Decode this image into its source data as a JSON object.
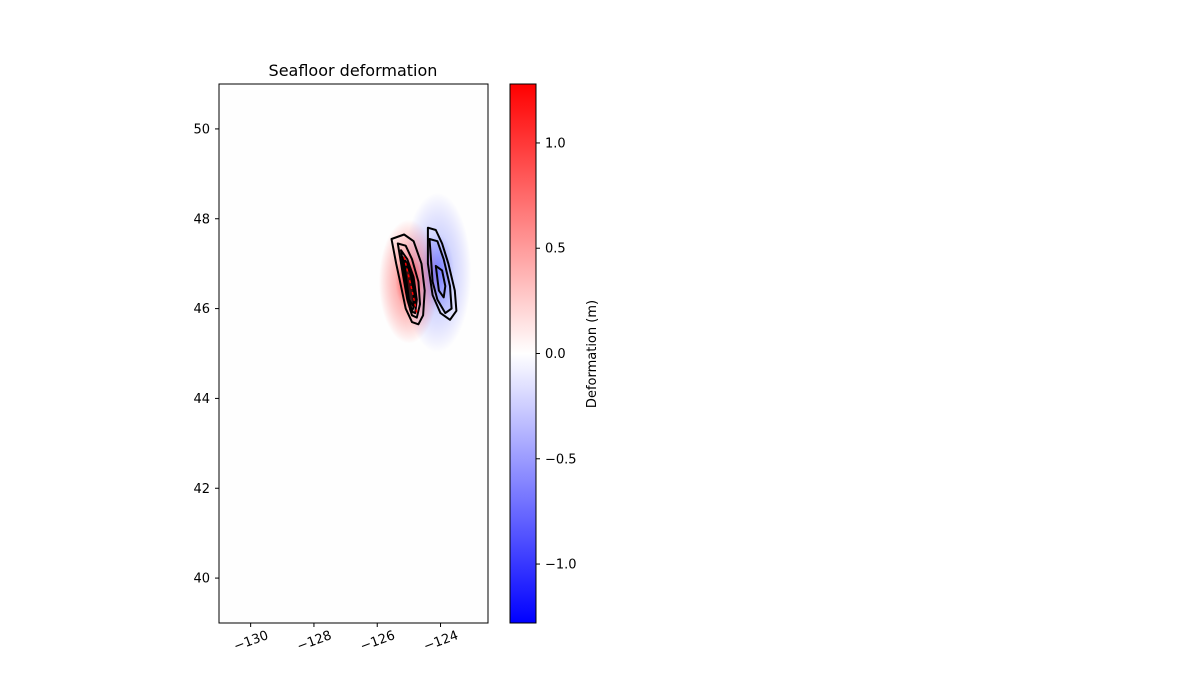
{
  "chart_data": {
    "type": "heatmap",
    "title": "Seafloor deformation",
    "xlabel": "",
    "ylabel": "",
    "xlim": [
      -131,
      -122.5
    ],
    "ylim": [
      39,
      51
    ],
    "x_ticks": [
      -130,
      -128,
      -126,
      -124
    ],
    "x_tick_labels": [
      "−130",
      "−128",
      "−126",
      "−124"
    ],
    "y_ticks": [
      40,
      42,
      44,
      46,
      48,
      50
    ],
    "y_tick_labels": [
      "40",
      "42",
      "44",
      "46",
      "48",
      "50"
    ],
    "grid": false,
    "colorbar": {
      "label": "Deformation (m)",
      "range": [
        -1.28,
        1.28
      ],
      "ticks": [
        -1.0,
        -0.5,
        0.0,
        0.5,
        1.0
      ],
      "tick_labels": [
        "−1.0",
        "−0.5",
        "0.0",
        "0.5",
        "1.0"
      ],
      "colormap": "bwr",
      "colors": [
        "#0000ff",
        "#ffffff",
        "#ff0000"
      ]
    },
    "uplift_region": {
      "lon": -125.0,
      "lat": 46.6,
      "peak_m": 1.2,
      "color": "#ff0000"
    },
    "subsidence_region": {
      "lon": -124.1,
      "lat": 46.8,
      "peak_m": -0.5,
      "color": "#0000ff"
    },
    "fault_trace": {
      "style": "dashed",
      "color": "#ff0000",
      "lon": [
        -125.15,
        -125.05,
        -124.95,
        -124.85,
        -124.75
      ],
      "lat": [
        47.15,
        46.85,
        46.55,
        46.25,
        45.9
      ]
    },
    "contours": {
      "color": "#000000",
      "positive": [
        {
          "lon": [
            -125.55,
            -125.15,
            -124.85,
            -124.6,
            -124.5,
            -124.55,
            -124.7,
            -124.9,
            -125.1,
            -125.25,
            -125.4,
            -125.55
          ],
          "lat": [
            47.55,
            47.65,
            47.5,
            47.0,
            46.4,
            45.85,
            45.65,
            45.7,
            46.0,
            46.5,
            47.0,
            47.55
          ]
        },
        {
          "lon": [
            -125.35,
            -125.1,
            -124.9,
            -124.7,
            -124.65,
            -124.75,
            -124.9,
            -125.05,
            -125.2,
            -125.35
          ],
          "lat": [
            47.45,
            47.4,
            47.1,
            46.6,
            46.1,
            45.8,
            45.85,
            46.2,
            46.8,
            47.45
          ]
        },
        {
          "lon": [
            -125.25,
            -125.05,
            -124.85,
            -124.75,
            -124.8,
            -124.95,
            -125.1,
            -125.25
          ],
          "lat": [
            47.3,
            47.1,
            46.7,
            46.2,
            45.9,
            45.95,
            46.5,
            47.3
          ]
        },
        {
          "lon": [
            -125.2,
            -125.0,
            -124.85,
            -124.8,
            -124.9,
            -125.05,
            -125.2
          ],
          "lat": [
            47.15,
            46.95,
            46.6,
            46.1,
            45.95,
            46.3,
            47.15
          ]
        },
        {
          "lon": [
            -125.15,
            -124.95,
            -124.85,
            -124.85,
            -125.0,
            -125.15
          ],
          "lat": [
            47.05,
            46.8,
            46.4,
            46.05,
            46.2,
            47.05
          ]
        }
      ],
      "negative": [
        {
          "lon": [
            -124.4,
            -124.15,
            -123.95,
            -123.75,
            -123.55,
            -123.5,
            -123.7,
            -124.0,
            -124.25,
            -124.4,
            -124.4
          ],
          "lat": [
            47.8,
            47.75,
            47.45,
            47.0,
            46.4,
            45.95,
            45.75,
            45.9,
            46.3,
            47.0,
            47.8
          ]
        },
        {
          "lon": [
            -124.35,
            -124.1,
            -123.9,
            -123.7,
            -123.65,
            -123.85,
            -124.1,
            -124.25,
            -124.3,
            -124.35
          ],
          "lat": [
            47.55,
            47.5,
            47.1,
            46.5,
            46.0,
            45.9,
            46.2,
            46.6,
            47.1,
            47.55
          ]
        },
        {
          "lon": [
            -124.15,
            -123.95,
            -123.85,
            -123.9,
            -124.05,
            -124.15
          ],
          "lat": [
            46.95,
            46.85,
            46.5,
            46.25,
            46.4,
            46.95
          ]
        }
      ]
    }
  }
}
